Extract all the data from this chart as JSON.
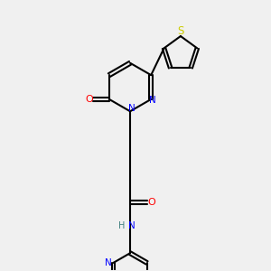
{
  "bg_color": "#f0f0f0",
  "atom_colors": {
    "C": "#000000",
    "N": "#0000ff",
    "O": "#ff0000",
    "S": "#cccc00",
    "H": "#408080"
  },
  "bond_color": "#000000",
  "figsize": [
    3.0,
    3.0
  ],
  "dpi": 100
}
